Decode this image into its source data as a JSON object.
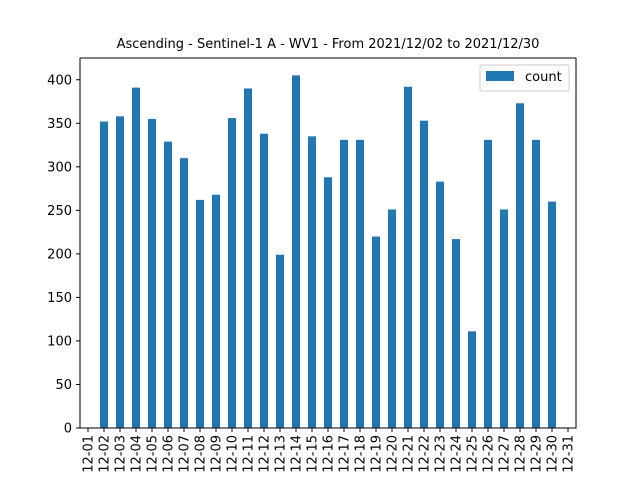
{
  "chart_data": {
    "type": "bar",
    "title": "Ascending - Sentinel-1 A - WV1 - From 2021/12/02 to 2021/12/30",
    "xlabel": "",
    "ylabel": "",
    "categories": [
      "12-01",
      "12-02",
      "12-03",
      "12-04",
      "12-05",
      "12-06",
      "12-07",
      "12-08",
      "12-09",
      "12-10",
      "12-11",
      "12-12",
      "12-13",
      "12-14",
      "12-15",
      "12-16",
      "12-17",
      "12-18",
      "12-19",
      "12-20",
      "12-21",
      "12-22",
      "12-23",
      "12-24",
      "12-25",
      "12-26",
      "12-27",
      "12-28",
      "12-29",
      "12-30",
      "12-31"
    ],
    "series": [
      {
        "name": "count",
        "color": "#1f77b4",
        "values": [
          null,
          352,
          358,
          391,
          355,
          329,
          310,
          262,
          268,
          356,
          390,
          338,
          199,
          405,
          335,
          288,
          331,
          331,
          220,
          251,
          392,
          353,
          283,
          217,
          111,
          331,
          251,
          373,
          331,
          260,
          null
        ]
      }
    ],
    "ylim": [
      0,
      425
    ],
    "yticks": [
      0,
      50,
      100,
      150,
      200,
      250,
      300,
      350,
      400
    ],
    "grid": false,
    "legend": {
      "position": "top-right",
      "label": "count"
    }
  }
}
